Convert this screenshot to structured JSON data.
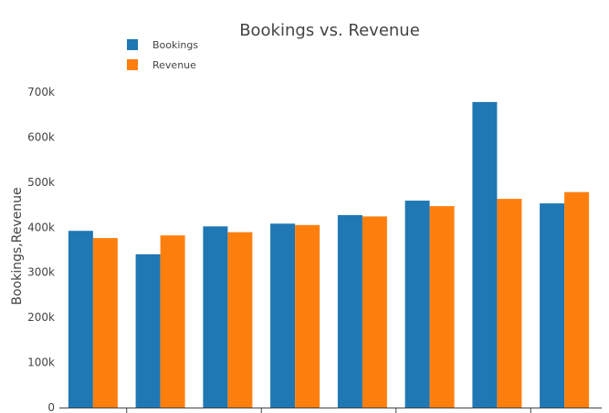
{
  "chart_data": {
    "type": "bar",
    "title": "Bookings vs. Revenue",
    "xlabel": "",
    "ylabel": "Bookings,Revenue",
    "ylim": [
      0,
      700000
    ],
    "yticks": [
      {
        "value": 0,
        "label": "0"
      },
      {
        "value": 100000,
        "label": "100k"
      },
      {
        "value": 200000,
        "label": "200k"
      },
      {
        "value": 300000,
        "label": "300k"
      },
      {
        "value": 400000,
        "label": "400k"
      },
      {
        "value": 500000,
        "label": "500k"
      },
      {
        "value": 600000,
        "label": "600k"
      },
      {
        "value": 700000,
        "label": "700k"
      }
    ],
    "grid": false,
    "legend": "top-left",
    "series": [
      {
        "name": "Bookings",
        "color": "#1f77b4",
        "values": [
          392000,
          340000,
          402000,
          408000,
          427000,
          459000,
          678000,
          453000
        ]
      },
      {
        "name": "Revenue",
        "color": "#ff7f0e",
        "values": [
          376000,
          382000,
          389000,
          405000,
          424000,
          447000,
          463000,
          478000
        ]
      }
    ]
  }
}
